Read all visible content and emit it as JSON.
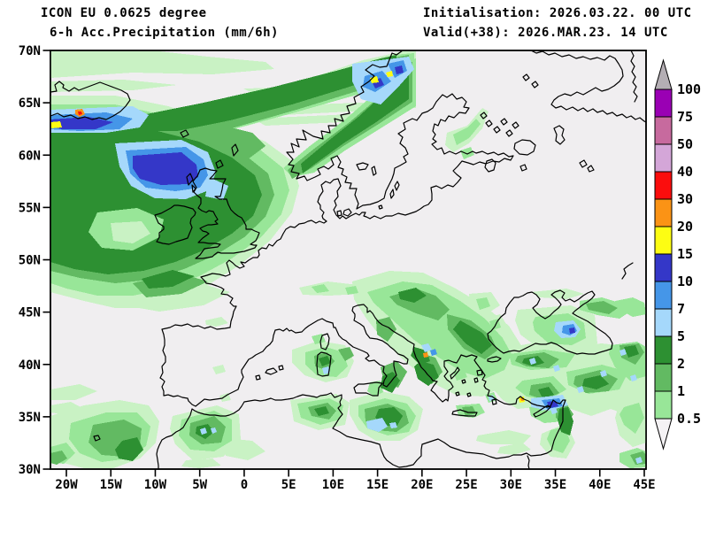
{
  "header": {
    "model_line": "ICON EU 0.0625 degree",
    "product_line": "6-h Acc.Precipitation (mm/6h)",
    "init_line": "Initialisation: 2026.03.22. 00 UTC",
    "valid_line": "Valid(+38): 2026.MAR.23. 14 UTC"
  },
  "map": {
    "background": "#f0eef0",
    "frame_color": "#000000",
    "coastline_color": "#000000",
    "lat_labels": [
      "70N",
      "65N",
      "60N",
      "55N",
      "50N",
      "45N",
      "40N",
      "35N",
      "30N"
    ],
    "lon_labels": [
      "20W",
      "15W",
      "10W",
      "5W",
      "0",
      "5E",
      "10E",
      "15E",
      "20E",
      "25E",
      "30E",
      "35E",
      "40E",
      "45E"
    ]
  },
  "palette": {
    "g0": "#c9f2c4",
    "g1": "#98e698",
    "g2": "#62ba62",
    "g3": "#2d9032",
    "b1": "#a5d8fb",
    "b2": "#4596e8",
    "b3": "#3437c8",
    "yellow": "#fdfd13",
    "orange": "#fb9315",
    "red": "#fb0d0d"
  },
  "legend": {
    "unit": "mm/6h",
    "above_max_color": "#b4aeb4",
    "below_min_color": "#f4f2f4",
    "entries": [
      {
        "value": "100",
        "band_color": "#9a00b4"
      },
      {
        "value": "75",
        "band_color": "#c76a9e"
      },
      {
        "value": "50",
        "band_color": "#d4a6d8"
      },
      {
        "value": "40",
        "band_color": "#fb0d0d"
      },
      {
        "value": "30",
        "band_color": "#fb9315"
      },
      {
        "value": "20",
        "band_color": "#fdfd13"
      },
      {
        "value": "15",
        "band_color": "#3437c8"
      },
      {
        "value": "10",
        "band_color": "#4596e8"
      },
      {
        "value": "7",
        "band_color": "#a5d8fb"
      },
      {
        "value": "5",
        "band_color": "#2d9032"
      },
      {
        "value": "2",
        "band_color": "#62ba62"
      },
      {
        "value": "1",
        "band_color": "#98e698"
      },
      {
        "value": "0.5",
        "band_color": null
      }
    ]
  }
}
